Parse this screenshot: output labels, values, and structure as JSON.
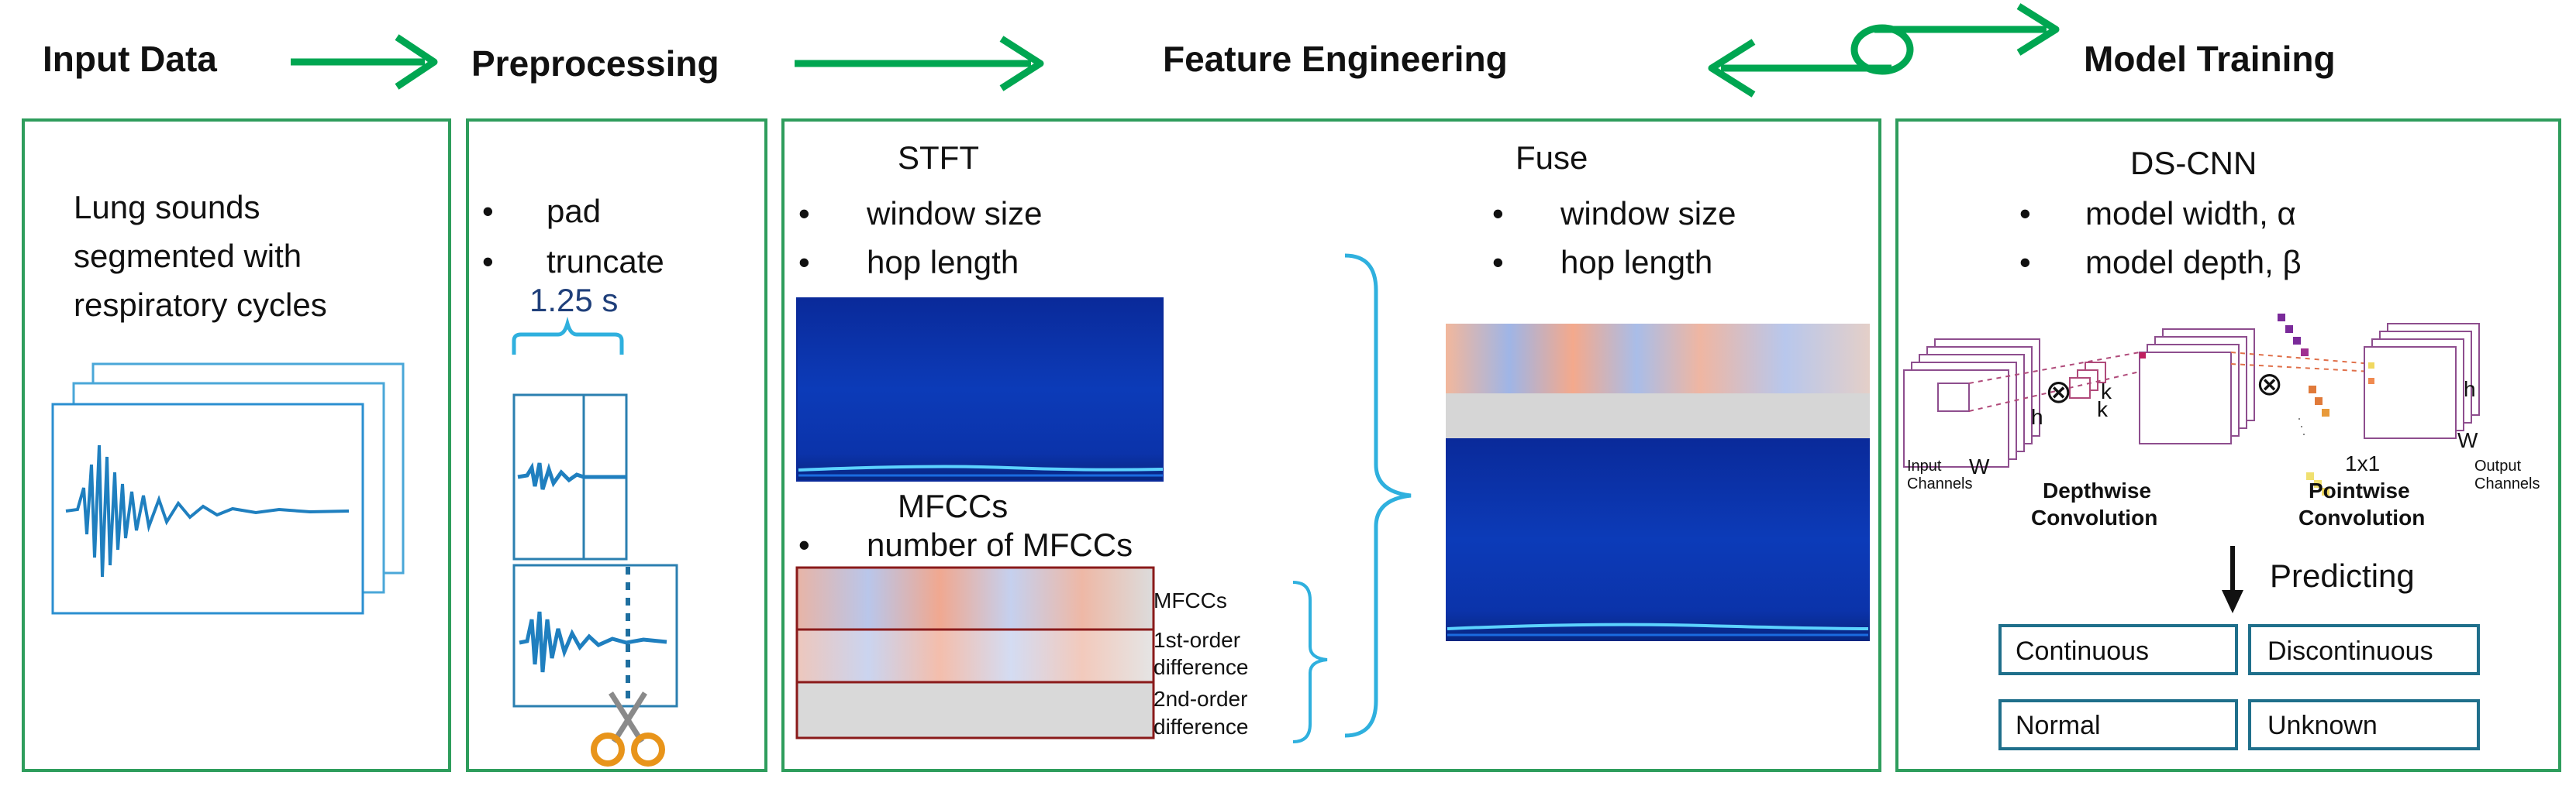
{
  "stages": {
    "input": "Input Data",
    "preprocessing": "Preprocessing",
    "feature": "Feature Engineering",
    "model": "Model Training"
  },
  "input_panel": {
    "line1": "Lung sounds",
    "line2": "segmented with",
    "line3": "respiratory cycles"
  },
  "pre_panel": {
    "bullets": [
      "pad",
      "truncate"
    ],
    "duration": "1.25 s"
  },
  "feature_panel": {
    "stft_title": "STFT",
    "stft_bullets": [
      "window size",
      "hop length"
    ],
    "mfcc_title": "MFCCs",
    "mfcc_bullet": "number of MFCCs",
    "mfcc_labels": {
      "l1": "MFCCs",
      "l2a": "1st-order",
      "l2b": "difference",
      "l3a": "2nd-order",
      "l3b": "difference"
    },
    "fuse_title": "Fuse",
    "fuse_bullets": [
      "window size",
      "hop length"
    ]
  },
  "model_panel": {
    "title": "DS-CNN",
    "bullets": [
      "model width, α",
      "model depth, β"
    ],
    "input_channels_a": "Input",
    "input_channels_b": "Channels",
    "w": "W",
    "h": "h",
    "k": "k",
    "one_by_one": "1x1",
    "output_channels_a": "Output",
    "output_channels_b": "Channels",
    "depthwise_a": "Depthwise",
    "depthwise_b": "Convolution",
    "pointwise_a": "Pointwise",
    "pointwise_b": "Convolution",
    "otimes": "⊗",
    "predicting": "Predicting",
    "classes": [
      "Continuous",
      "Discontinuous",
      "Normal",
      "Unknown"
    ]
  },
  "colors": {
    "green": "#00a651",
    "panel_border": "#2e9d5c",
    "teal": "#1f7fae",
    "spectro_blue": "#0b2c9e",
    "bracket": "#2fb0de",
    "box_border": "#1f6f8b",
    "mfcc_border": "#8a1a1a"
  }
}
